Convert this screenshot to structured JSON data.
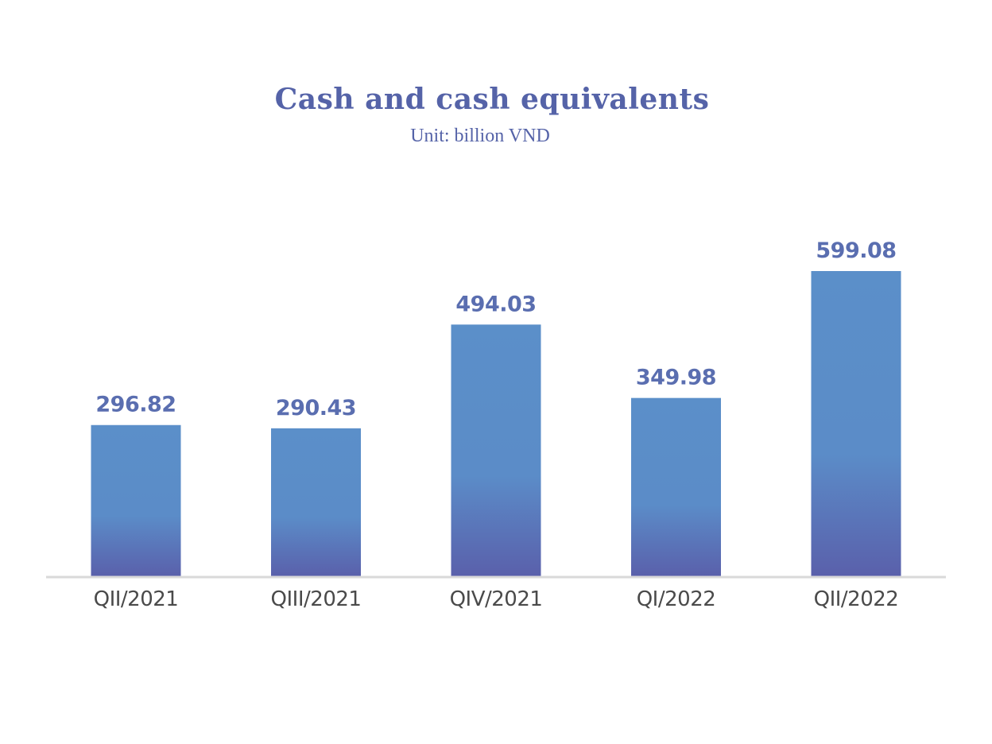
{
  "chart_data": {
    "type": "bar",
    "title": "Cash and cash equivalents",
    "subtitle": "Unit: billion VND",
    "categories": [
      "QII/2021",
      "QIII/2021",
      "QIV/2021",
      "QI/2022",
      "QII/2022"
    ],
    "values": [
      296.82,
      290.43,
      494.03,
      349.98,
      599.08
    ],
    "value_labels": [
      "296.82",
      "290.43",
      "494.03",
      "349.98",
      "599.08"
    ],
    "xlabel": "",
    "ylabel": "",
    "ylim": [
      0,
      599.08
    ],
    "grid": false,
    "legend": "none",
    "colors": {
      "bar_top": "#5b8fc9",
      "bar_bottom": "#5a63ad",
      "label": "#5a6eb0",
      "axis": "#d9d9d9",
      "title": "#5563a8"
    }
  }
}
